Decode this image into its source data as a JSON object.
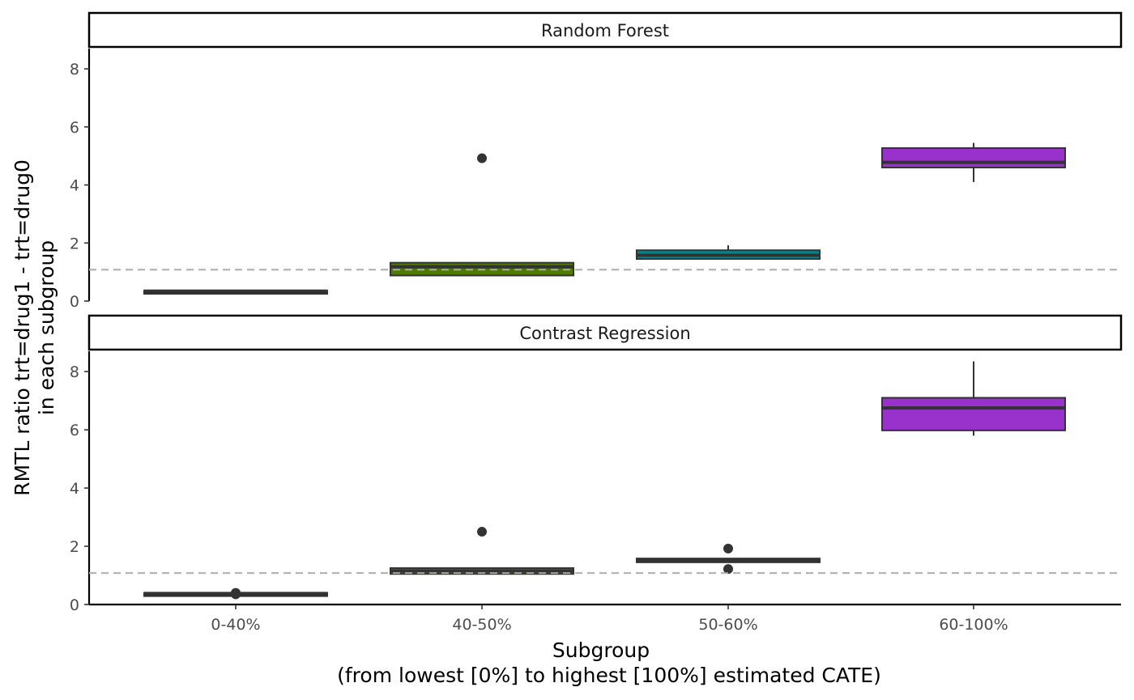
{
  "chart_data": {
    "type": "boxplot",
    "xlabel": "Subgroup",
    "xlabel_line2": "(from lowest [0%] to highest [100%] estimated CATE)",
    "ylabel": "RMTL ratio trt=drug1 - trt=drug0",
    "ylabel_line2": "in each subgroup",
    "categories": [
      "0-40%",
      "40-50%",
      "50-60%",
      "60-100%"
    ],
    "ylim": [
      0,
      8.7
    ],
    "yticks": [
      0,
      2,
      4,
      6,
      8
    ],
    "reference_line": 1.08,
    "legend": "none",
    "grid": false,
    "fill_colors": [
      "#1a1a1a",
      "#4d7a00",
      "#00868b",
      "#9932cc"
    ],
    "panels": [
      {
        "title": "Random Forest",
        "boxes": [
          {
            "category": "0-40%",
            "q1": 0.32,
            "median": 0.34,
            "q3": 0.36,
            "whisker_low": 0.3,
            "whisker_high": 0.38,
            "outliers": []
          },
          {
            "category": "40-50%",
            "q1": 0.88,
            "median": 1.18,
            "q3": 1.32,
            "whisker_low": 0.88,
            "whisker_high": 1.32,
            "outliers": [
              4.92
            ]
          },
          {
            "category": "50-60%",
            "q1": 1.45,
            "median": 1.58,
            "q3": 1.75,
            "whisker_low": 1.45,
            "whisker_high": 1.92,
            "outliers": []
          },
          {
            "category": "60-100%",
            "q1": 4.6,
            "median": 4.78,
            "q3": 5.27,
            "whisker_low": 4.1,
            "whisker_high": 5.45,
            "outliers": []
          }
        ]
      },
      {
        "title": "Contrast Regression",
        "boxes": [
          {
            "category": "0-40%",
            "q1": 0.36,
            "median": 0.38,
            "q3": 0.4,
            "whisker_low": 0.34,
            "whisker_high": 0.42,
            "outliers": [
              0.35,
              0.4
            ]
          },
          {
            "category": "40-50%",
            "q1": 1.05,
            "median": 1.15,
            "q3": 1.25,
            "whisker_low": 1.05,
            "whisker_high": 1.25,
            "outliers": [
              2.5
            ]
          },
          {
            "category": "50-60%",
            "q1": 1.45,
            "median": 1.52,
            "q3": 1.58,
            "whisker_low": 1.45,
            "whisker_high": 1.58,
            "outliers": [
              1.92,
              1.22
            ]
          },
          {
            "category": "60-100%",
            "q1": 5.98,
            "median": 6.75,
            "q3": 7.1,
            "whisker_low": 5.8,
            "whisker_high": 8.35,
            "outliers": []
          }
        ]
      }
    ]
  }
}
